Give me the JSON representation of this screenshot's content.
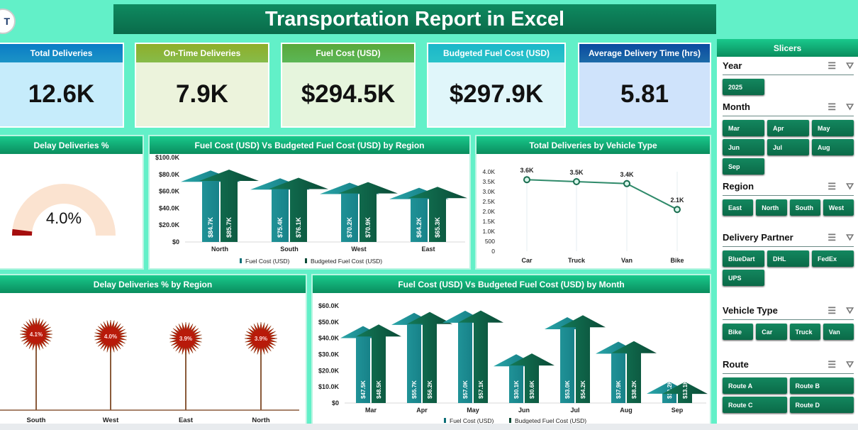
{
  "header": {
    "title": "Transportation Report in Excel",
    "logo_text": "T"
  },
  "kpis": [
    {
      "label": "Total Deliveries",
      "value": "12.6K",
      "header_color": "#0a7cc6",
      "body_color": "#c6ecfb"
    },
    {
      "label": "On-Time Deliveries",
      "value": "7.9K",
      "header_color": "#8fae2a",
      "body_color": "#ecf3dc"
    },
    {
      "label": "Fuel Cost (USD)",
      "value": "$294.5K",
      "header_color": "#5aa83a",
      "body_color": "#e6f5dd"
    },
    {
      "label": "Budgeted Fuel Cost (USD)",
      "value": "$297.9K",
      "header_color": "#1bb7c9",
      "body_color": "#e0f6fa"
    },
    {
      "label": "Average Delivery Time (hrs)",
      "value": "5.81",
      "header_color": "#0b4aa0",
      "body_color": "#cfe3fb"
    }
  ],
  "gauge": {
    "title": "Delay Deliveries %",
    "label": "4.0%",
    "percent": 4.0
  },
  "chart_data": [
    {
      "type": "bar",
      "title": "Fuel Cost (USD) Vs Budgeted Fuel Cost (USD) by Region",
      "categories": [
        "North",
        "South",
        "West",
        "East"
      ],
      "series": [
        {
          "name": "Fuel Cost (USD)",
          "values": [
            84.7,
            75.4,
            70.2,
            64.2
          ],
          "labels": [
            "$84.7K",
            "$75.4K",
            "$70.2K",
            "$64.2K"
          ]
        },
        {
          "name": "Budgeted Fuel Cost (USD)",
          "values": [
            85.7,
            76.1,
            70.9,
            65.3
          ],
          "labels": [
            "$85.7K",
            "$76.1K",
            "$70.9K",
            "$65.3K"
          ]
        }
      ],
      "ylim": [
        0,
        100
      ],
      "yticks": [
        "$0",
        "$20.0K",
        "$40.0K",
        "$60.0K",
        "$80.0K",
        "$100.0K"
      ],
      "legend": "bottom"
    },
    {
      "type": "line",
      "title": "Total Deliveries by Vehicle Type",
      "categories": [
        "Car",
        "Truck",
        "Van",
        "Bike"
      ],
      "values": [
        3.6,
        3.5,
        3.4,
        2.1
      ],
      "labels": [
        "3.6K",
        "3.5K",
        "3.4K",
        "2.1K"
      ],
      "ylim": [
        0,
        4
      ],
      "yticks": [
        "0",
        "500",
        "1.0K",
        "1.5K",
        "2.0K",
        "2.5K",
        "3.0K",
        "3.5K",
        "4.0K"
      ]
    },
    {
      "type": "lollipop",
      "title": "Delay Deliveries % by Region",
      "categories": [
        "South",
        "West",
        "East",
        "North"
      ],
      "values": [
        4.1,
        4.0,
        3.9,
        3.9
      ],
      "labels": [
        "4.1%",
        "4.0%",
        "3.9%",
        "3.9%"
      ]
    },
    {
      "type": "bar",
      "title": "Fuel Cost (USD) Vs Budgeted Fuel Cost (USD) by Month",
      "categories": [
        "Mar",
        "Apr",
        "May",
        "Jun",
        "Jul",
        "Aug",
        "Sep"
      ],
      "series": [
        {
          "name": "Fuel Cost (USD)",
          "values": [
            47.5,
            55.7,
            57.0,
            30.1,
            53.0,
            37.9,
            13.2
          ],
          "labels": [
            "$47.5K",
            "$55.7K",
            "$57.0K",
            "$30.1K",
            "$53.0K",
            "$37.9K",
            "$13.2K"
          ]
        },
        {
          "name": "Budgeted Fuel Cost (USD)",
          "values": [
            48.5,
            56.2,
            57.1,
            30.6,
            54.2,
            38.2,
            13.1
          ],
          "labels": [
            "$48.5K",
            "$56.2K",
            "$57.1K",
            "$30.6K",
            "$54.2K",
            "$38.2K",
            "$13.1K"
          ]
        }
      ],
      "ylim": [
        0,
        60
      ],
      "yticks": [
        "$0",
        "$10.0K",
        "$20.0K",
        "$30.0K",
        "$40.0K",
        "$50.0K",
        "$60.0K"
      ],
      "legend": "bottom"
    }
  ],
  "slicers": {
    "title": "Slicers",
    "groups": [
      {
        "name": "Year",
        "items": [
          "2025"
        ],
        "cols": 3
      },
      {
        "name": "Month",
        "items": [
          "Mar",
          "Apr",
          "May",
          "Jun",
          "Jul",
          "Aug",
          "Sep"
        ],
        "cols": 3
      },
      {
        "name": "Region",
        "items": [
          "East",
          "North",
          "South",
          "West"
        ],
        "cols": 4
      },
      {
        "name": "Delivery Partner",
        "items": [
          "BlueDart",
          "DHL",
          "FedEx",
          "UPS"
        ],
        "cols": 3
      },
      {
        "name": "Vehicle Type",
        "items": [
          "Bike",
          "Car",
          "Truck",
          "Van"
        ],
        "cols": 4
      },
      {
        "name": "Route",
        "items": [
          "Route A",
          "Route B",
          "Route C",
          "Route D"
        ],
        "cols": 2
      }
    ]
  }
}
